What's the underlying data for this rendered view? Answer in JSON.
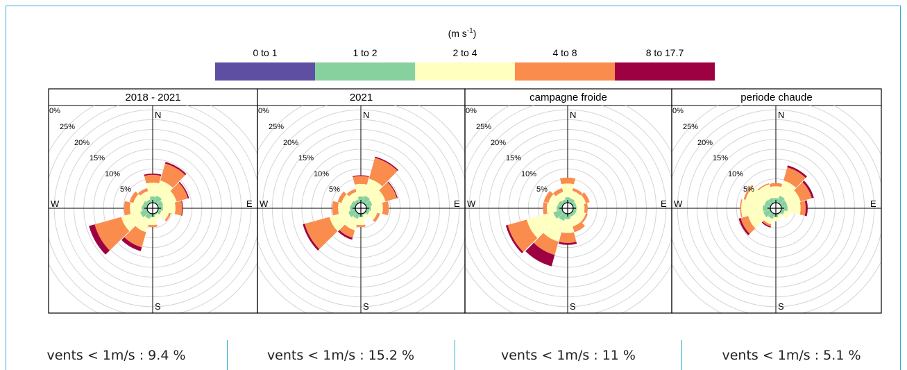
{
  "legend": {
    "unit_main": "(m s",
    "unit_sup": "-1",
    "unit_close": ")",
    "bins": [
      {
        "label": "0 to 1",
        "color": "#5e4fa2"
      },
      {
        "label": "1 to 2",
        "color": "#87d19f"
      },
      {
        "label": "2 to 4",
        "color": "#ffffbf"
      },
      {
        "label": "4 to 8",
        "color": "#fa8c4e"
      },
      {
        "label": "8 to 17.7",
        "color": "#9e0142"
      }
    ]
  },
  "axis": {
    "ring_labels": [
      "0%",
      "25%",
      "20%",
      "15%",
      "10%",
      "5%"
    ],
    "compass": {
      "N": "N",
      "E": "E",
      "S": "S",
      "W": "W"
    }
  },
  "chart_data": {
    "type": "wind-rose",
    "directions_deg": [
      0,
      30,
      60,
      90,
      120,
      150,
      180,
      210,
      240,
      270,
      300,
      330
    ],
    "radius_max_pct": 27.5,
    "ring_step_pct": 2.5,
    "panels": [
      {
        "title": "2018 - 2021",
        "petals": [
          [
            0.8,
            2.2,
            3.5,
            2.0,
            0.3
          ],
          [
            0.8,
            2.5,
            4.0,
            4.5,
            0.4
          ],
          [
            0.8,
            2.0,
            3.5,
            3.0,
            0.3
          ],
          [
            0.8,
            1.8,
            3.2,
            1.7,
            0.2
          ],
          [
            0.8,
            1.5,
            2.0,
            0.5,
            0.0
          ],
          [
            0.8,
            1.0,
            1.2,
            0.0,
            0.0
          ],
          [
            0.8,
            1.5,
            2.0,
            0.5,
            0.0
          ],
          [
            0.8,
            2.0,
            3.5,
            4.0,
            1.0
          ],
          [
            0.8,
            2.5,
            5.0,
            7.0,
            1.5
          ],
          [
            0.8,
            2.0,
            3.0,
            1.5,
            0.0
          ],
          [
            0.8,
            1.8,
            2.5,
            1.0,
            0.0
          ],
          [
            0.8,
            1.5,
            2.2,
            0.8,
            0.0
          ]
        ]
      },
      {
        "title": "2021",
        "petals": [
          [
            0.8,
            2.2,
            3.2,
            2.0,
            0.2
          ],
          [
            0.8,
            2.5,
            4.5,
            5.5,
            0.3
          ],
          [
            0.8,
            2.2,
            3.5,
            3.0,
            0.2
          ],
          [
            0.8,
            1.8,
            3.0,
            1.5,
            0.0
          ],
          [
            0.8,
            1.5,
            2.0,
            0.7,
            0.0
          ],
          [
            0.8,
            1.0,
            1.0,
            0.0,
            0.0
          ],
          [
            0.8,
            1.5,
            2.0,
            0.5,
            0.0
          ],
          [
            0.8,
            2.0,
            3.0,
            2.0,
            0.5
          ],
          [
            0.8,
            2.5,
            5.0,
            6.5,
            0.5
          ],
          [
            0.8,
            2.0,
            3.0,
            1.5,
            0.0
          ],
          [
            0.8,
            1.8,
            2.5,
            1.0,
            0.0
          ],
          [
            0.8,
            1.5,
            2.0,
            0.8,
            0.0
          ]
        ]
      },
      {
        "title": "campagne froide",
        "petals": [
          [
            0.8,
            2.0,
            3.5,
            1.5,
            0.0
          ],
          [
            0.8,
            1.8,
            2.0,
            0.7,
            0.0
          ],
          [
            0.8,
            1.5,
            2.5,
            1.0,
            0.0
          ],
          [
            0.8,
            1.5,
            2.0,
            0.8,
            0.0
          ],
          [
            0.8,
            1.5,
            2.5,
            0.5,
            0.0
          ],
          [
            0.8,
            1.5,
            2.5,
            1.5,
            0.0
          ],
          [
            0.8,
            2.0,
            3.5,
            2.5,
            0.5
          ],
          [
            0.8,
            2.5,
            5.5,
            3.5,
            3.0
          ],
          [
            0.8,
            3.0,
            7.0,
            5.0,
            0.5
          ],
          [
            0.8,
            2.0,
            2.5,
            1.0,
            0.0
          ],
          [
            0.8,
            1.8,
            2.5,
            1.2,
            0.0
          ],
          [
            0.8,
            1.5,
            2.0,
            1.0,
            0.0
          ]
        ]
      },
      {
        "title": "periode chaude",
        "petals": [
          [
            0.8,
            1.8,
            3.0,
            0.8,
            0.0
          ],
          [
            0.8,
            2.5,
            4.0,
            3.5,
            0.5
          ],
          [
            0.8,
            2.2,
            3.5,
            3.0,
            0.5
          ],
          [
            0.8,
            2.2,
            3.3,
            1.3,
            0.5
          ],
          [
            0.8,
            1.5,
            1.5,
            0.0,
            0.0
          ],
          [
            0.8,
            1.0,
            0.8,
            0.0,
            0.0
          ],
          [
            0.8,
            1.5,
            1.0,
            0.0,
            0.0
          ],
          [
            0.8,
            2.0,
            1.5,
            0.5,
            0.3
          ],
          [
            0.8,
            2.5,
            4.0,
            2.0,
            0.5
          ],
          [
            0.8,
            2.5,
            5.5,
            0.3,
            0.0
          ],
          [
            0.8,
            2.2,
            5.0,
            0.5,
            0.0
          ],
          [
            0.8,
            2.0,
            3.5,
            0.3,
            0.0
          ]
        ]
      }
    ]
  },
  "footer": {
    "captions": [
      "vents < 1m/s : 9.4 %",
      "vents < 1m/s : 15.2 %",
      "vents < 1m/s : 11 %",
      "vents < 1m/s : 5.1 %"
    ]
  }
}
